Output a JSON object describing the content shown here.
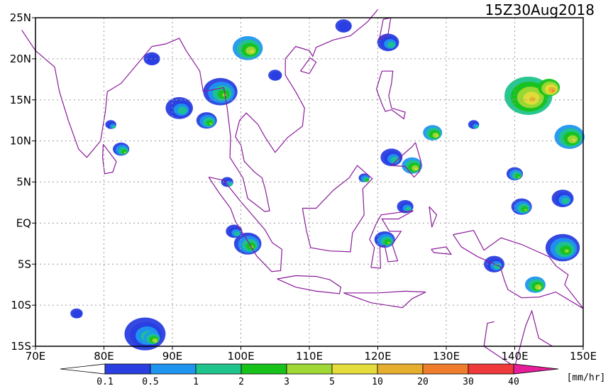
{
  "title": "15Z30Aug2018",
  "map": {
    "xlim": [
      70,
      150
    ],
    "ylim": [
      -15,
      25
    ],
    "xticks": [
      {
        "value": 70,
        "label": "70E"
      },
      {
        "value": 80,
        "label": "80E"
      },
      {
        "value": 90,
        "label": "90E"
      },
      {
        "value": 100,
        "label": "100E"
      },
      {
        "value": 110,
        "label": "110E"
      },
      {
        "value": 120,
        "label": "120E"
      },
      {
        "value": 130,
        "label": "130E"
      },
      {
        "value": 140,
        "label": "140E"
      },
      {
        "value": 150,
        "label": "150E"
      }
    ],
    "yticks": [
      {
        "value": -15,
        "label": "15S"
      },
      {
        "value": -10,
        "label": "10S"
      },
      {
        "value": -5,
        "label": "5S"
      },
      {
        "value": 0,
        "label": "EQ"
      },
      {
        "value": 5,
        "label": "5N"
      },
      {
        "value": 10,
        "label": "10N"
      },
      {
        "value": 15,
        "label": "15N"
      },
      {
        "value": 20,
        "label": "20N"
      },
      {
        "value": 25,
        "label": "25N"
      }
    ],
    "grid": true
  },
  "colorbar": {
    "levels": [
      0.1,
      0.5,
      1,
      2,
      3,
      5,
      10,
      20,
      30,
      40
    ],
    "colors": [
      "#ffffff",
      "#2a3fe0",
      "#1e96f0",
      "#1fc38c",
      "#17c21a",
      "#a0d835",
      "#e3dc3a",
      "#e6ae2e",
      "#ef7d2c",
      "#ee3a3a",
      "#e61e9a"
    ],
    "unit": "[mm/hr]"
  }
}
